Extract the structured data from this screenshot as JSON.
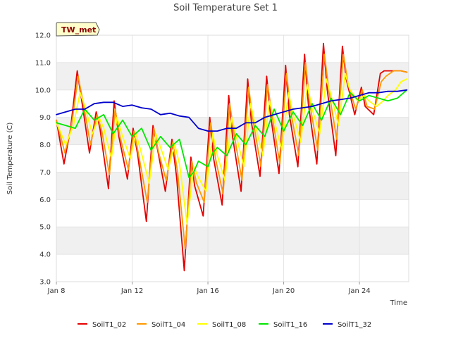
{
  "chart_data": {
    "type": "line",
    "title": "Soil Temperature Set 1",
    "xlabel": "Time",
    "ylabel": "Soil Temperature (C)",
    "site_label": "TW_met",
    "xlim": [
      0,
      18.6
    ],
    "ylim": [
      3.0,
      12.0
    ],
    "x_ticks": [
      {
        "x": 0,
        "label": "Jan 8"
      },
      {
        "x": 4,
        "label": "Jan 12"
      },
      {
        "x": 8,
        "label": "Jan 16"
      },
      {
        "x": 12,
        "label": "Jan 20"
      },
      {
        "x": 16,
        "label": "Jan 24"
      }
    ],
    "y_ticks": [
      {
        "y": 3.0,
        "label": "3.0"
      },
      {
        "y": 4.0,
        "label": "4.0"
      },
      {
        "y": 5.0,
        "label": "5.0"
      },
      {
        "y": 6.0,
        "label": "6.0"
      },
      {
        "y": 7.0,
        "label": "7.0"
      },
      {
        "y": 8.0,
        "label": "8.0"
      },
      {
        "y": 9.0,
        "label": "9.0"
      },
      {
        "y": 10.0,
        "label": "10.0"
      },
      {
        "y": 11.0,
        "label": "11.0"
      },
      {
        "y": 12.0,
        "label": "12.0"
      }
    ],
    "grid": true,
    "band_colors": [
      "#f0f0f0",
      "#ffffff"
    ],
    "legend_position": "bottom",
    "series": [
      {
        "name": "SoilT1_02",
        "color": "#e60000",
        "x": [
          0.0,
          0.4,
          0.75,
          1.1,
          1.3,
          1.75,
          2.1,
          2.3,
          2.75,
          3.05,
          3.3,
          3.75,
          4.05,
          4.3,
          4.75,
          5.1,
          5.35,
          5.75,
          6.1,
          6.35,
          6.75,
          7.1,
          7.3,
          7.75,
          8.1,
          8.3,
          8.75,
          9.1,
          9.3,
          9.75,
          10.1,
          10.3,
          10.75,
          11.1,
          11.3,
          11.75,
          12.1,
          12.3,
          12.75,
          13.1,
          13.3,
          13.75,
          14.1,
          14.3,
          14.75,
          15.1,
          15.3,
          15.75,
          16.1,
          16.3,
          16.75,
          17.1,
          17.3,
          17.75,
          18.2,
          18.5
        ],
        "y": [
          8.9,
          7.3,
          8.6,
          10.7,
          9.8,
          7.7,
          9.2,
          8.6,
          6.4,
          9.6,
          8.3,
          6.75,
          8.6,
          7.6,
          5.2,
          8.7,
          7.8,
          6.3,
          8.2,
          6.8,
          3.4,
          7.55,
          6.5,
          5.4,
          9.0,
          7.5,
          5.8,
          9.8,
          8.3,
          6.3,
          10.4,
          8.8,
          6.85,
          10.5,
          9.1,
          6.95,
          10.9,
          9.1,
          7.2,
          11.3,
          9.5,
          7.3,
          11.7,
          10.0,
          7.6,
          11.6,
          10.4,
          9.1,
          10.1,
          9.4,
          9.1,
          10.6,
          10.7,
          10.7,
          10.7,
          10.65
        ]
      },
      {
        "name": "SoilT1_04",
        "color": "#ff9900",
        "x": [
          0.0,
          0.45,
          0.8,
          1.15,
          1.4,
          1.8,
          2.15,
          2.4,
          2.8,
          3.1,
          3.35,
          3.8,
          4.1,
          4.35,
          4.8,
          5.15,
          5.4,
          5.8,
          6.15,
          6.4,
          6.8,
          7.15,
          7.4,
          7.8,
          8.15,
          8.4,
          8.8,
          9.15,
          9.4,
          9.8,
          10.15,
          10.4,
          10.8,
          11.15,
          11.4,
          11.8,
          12.15,
          12.4,
          12.8,
          13.15,
          13.4,
          13.8,
          14.15,
          14.4,
          14.8,
          15.15,
          15.4,
          15.8,
          16.15,
          16.4,
          16.8,
          17.15,
          17.4,
          17.8,
          18.2,
          18.5
        ],
        "y": [
          8.9,
          7.7,
          8.7,
          10.5,
          9.6,
          8.0,
          9.1,
          8.5,
          6.9,
          9.3,
          8.3,
          7.1,
          8.5,
          7.6,
          5.9,
          8.6,
          7.7,
          6.7,
          8.1,
          7.0,
          4.2,
          7.4,
          6.6,
          5.9,
          8.8,
          7.5,
          6.2,
          9.5,
          8.3,
          6.7,
          10.1,
          8.8,
          7.2,
          10.2,
          9.0,
          7.3,
          10.6,
          9.1,
          7.6,
          11.0,
          9.4,
          7.8,
          11.3,
          9.9,
          8.2,
          11.3,
          10.2,
          9.3,
          10.0,
          9.4,
          9.3,
          10.3,
          10.5,
          10.7,
          10.7,
          10.65
        ]
      },
      {
        "name": "SoilT1_08",
        "color": "#ffff00",
        "x": [
          0.0,
          0.5,
          0.9,
          1.25,
          1.5,
          1.9,
          2.25,
          2.5,
          2.9,
          3.2,
          3.45,
          3.9,
          4.2,
          4.45,
          4.9,
          5.25,
          5.5,
          5.9,
          6.25,
          6.5,
          6.9,
          7.25,
          7.5,
          7.9,
          8.25,
          8.5,
          8.9,
          9.25,
          9.5,
          9.9,
          10.25,
          10.5,
          10.9,
          11.25,
          11.5,
          11.9,
          12.25,
          12.5,
          12.9,
          13.25,
          13.5,
          13.9,
          14.25,
          14.5,
          14.9,
          15.25,
          15.5,
          15.9,
          16.25,
          16.5,
          16.9,
          17.25,
          17.5,
          17.9,
          18.2,
          18.5
        ],
        "y": [
          8.8,
          8.0,
          8.7,
          9.9,
          9.4,
          8.4,
          9.0,
          8.6,
          7.5,
          9.0,
          8.4,
          7.5,
          8.4,
          7.8,
          6.6,
          8.4,
          7.9,
          7.1,
          8.0,
          7.3,
          5.1,
          7.2,
          6.8,
          6.3,
          8.4,
          7.6,
          6.7,
          9.0,
          8.3,
          7.2,
          9.5,
          8.7,
          7.6,
          9.6,
          8.9,
          7.8,
          9.9,
          9.1,
          8.1,
          10.2,
          9.3,
          8.4,
          10.4,
          9.8,
          8.7,
          10.6,
          10.0,
          9.6,
          9.8,
          9.6,
          9.4,
          9.6,
          9.8,
          10.0,
          10.3,
          10.4
        ]
      },
      {
        "name": "SoilT1_16",
        "color": "#00e600",
        "x": [
          0.0,
          0.5,
          1.0,
          1.5,
          2.0,
          2.5,
          3.0,
          3.5,
          4.0,
          4.5,
          5.0,
          5.5,
          6.0,
          6.5,
          7.0,
          7.25,
          7.5,
          8.0,
          8.25,
          8.5,
          9.0,
          9.5,
          10.0,
          10.5,
          11.0,
          11.5,
          12.0,
          12.5,
          13.0,
          13.5,
          14.0,
          14.5,
          15.0,
          15.5,
          16.0,
          16.5,
          17.0,
          17.5,
          18.0,
          18.5
        ],
        "y": [
          8.8,
          8.7,
          8.6,
          9.3,
          8.9,
          9.1,
          8.4,
          8.9,
          8.3,
          8.6,
          7.8,
          8.3,
          7.9,
          8.2,
          6.8,
          7.0,
          7.4,
          7.2,
          7.7,
          7.9,
          7.6,
          8.4,
          8.0,
          8.7,
          8.3,
          9.3,
          8.5,
          9.2,
          8.7,
          9.5,
          8.9,
          9.7,
          9.1,
          9.9,
          9.6,
          9.8,
          9.7,
          9.6,
          9.7,
          10.0
        ]
      },
      {
        "name": "SoilT1_32",
        "color": "#0000cc",
        "x": [
          0.0,
          0.5,
          1.0,
          1.5,
          2.0,
          2.5,
          3.0,
          3.5,
          4.0,
          4.5,
          5.0,
          5.5,
          6.0,
          6.5,
          7.0,
          7.5,
          8.0,
          8.5,
          9.0,
          9.5,
          10.0,
          10.5,
          11.0,
          11.5,
          12.0,
          12.5,
          13.0,
          13.5,
          14.0,
          14.5,
          15.0,
          15.5,
          16.0,
          16.5,
          17.0,
          17.5,
          18.0,
          18.5
        ],
        "y": [
          9.1,
          9.2,
          9.3,
          9.3,
          9.5,
          9.55,
          9.55,
          9.4,
          9.45,
          9.35,
          9.3,
          9.1,
          9.15,
          9.05,
          9.0,
          8.6,
          8.5,
          8.5,
          8.6,
          8.6,
          8.8,
          8.8,
          9.0,
          9.1,
          9.2,
          9.3,
          9.35,
          9.4,
          9.5,
          9.6,
          9.65,
          9.7,
          9.8,
          9.9,
          9.9,
          9.95,
          9.95,
          10.0
        ]
      }
    ]
  }
}
